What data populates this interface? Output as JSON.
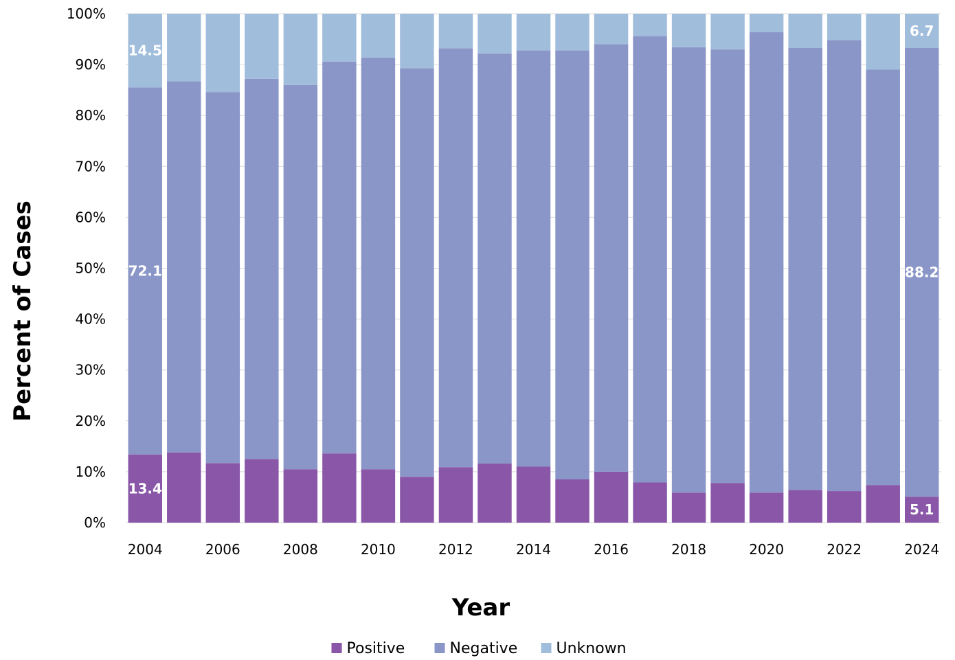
{
  "chart_data": {
    "type": "bar",
    "stacked": true,
    "xlabel": "Year",
    "ylabel": "Percent of Cases",
    "ylim": [
      0,
      100
    ],
    "y_ticks": [
      "0%",
      "10%",
      "20%",
      "30%",
      "40%",
      "50%",
      "60%",
      "70%",
      "80%",
      "90%",
      "100%"
    ],
    "x_tick_labels": [
      "2004",
      "2006",
      "2008",
      "2010",
      "2012",
      "2014",
      "2016",
      "2018",
      "2020",
      "2022",
      "2024"
    ],
    "grid": true,
    "legend_position": "bottom",
    "categories": [
      "2004",
      "2005",
      "2006",
      "2007",
      "2008",
      "2009",
      "2010",
      "2011",
      "2012",
      "2013",
      "2014",
      "2015",
      "2016",
      "2017",
      "2018",
      "2019",
      "2020",
      "2021",
      "2022",
      "2023",
      "2024"
    ],
    "series": [
      {
        "name": "Positive",
        "color": "#8A56A8",
        "values": [
          13.4,
          13.8,
          11.7,
          12.5,
          10.5,
          13.6,
          10.5,
          9.0,
          10.9,
          11.6,
          11.0,
          8.5,
          10.0,
          7.9,
          5.9,
          7.8,
          5.9,
          6.4,
          6.2,
          7.4,
          5.1
        ]
      },
      {
        "name": "Negative",
        "color": "#8B96C8",
        "values": [
          72.1,
          72.9,
          72.9,
          74.7,
          75.5,
          77.0,
          80.9,
          80.3,
          82.3,
          80.6,
          81.8,
          84.3,
          84.0,
          87.7,
          87.5,
          85.2,
          90.5,
          86.9,
          88.6,
          81.6,
          88.2
        ]
      },
      {
        "name": "Unknown",
        "color": "#A1BDDC",
        "values": [
          14.5,
          13.3,
          15.4,
          12.8,
          14.0,
          9.4,
          8.6,
          10.7,
          6.8,
          7.8,
          7.2,
          7.2,
          6.0,
          4.4,
          6.6,
          7.0,
          3.6,
          6.7,
          5.2,
          11.0,
          6.7
        ]
      }
    ],
    "data_labels": [
      {
        "series": "Unknown",
        "category": "2004",
        "text": "14.5"
      },
      {
        "series": "Negative",
        "category": "2004",
        "text": "72.1"
      },
      {
        "series": "Positive",
        "category": "2004",
        "text": "13.4"
      },
      {
        "series": "Unknown",
        "category": "2024",
        "text": "6.7"
      },
      {
        "series": "Negative",
        "category": "2024",
        "text": "88.2"
      },
      {
        "series": "Positive",
        "category": "2024",
        "text": "5.1"
      }
    ]
  }
}
